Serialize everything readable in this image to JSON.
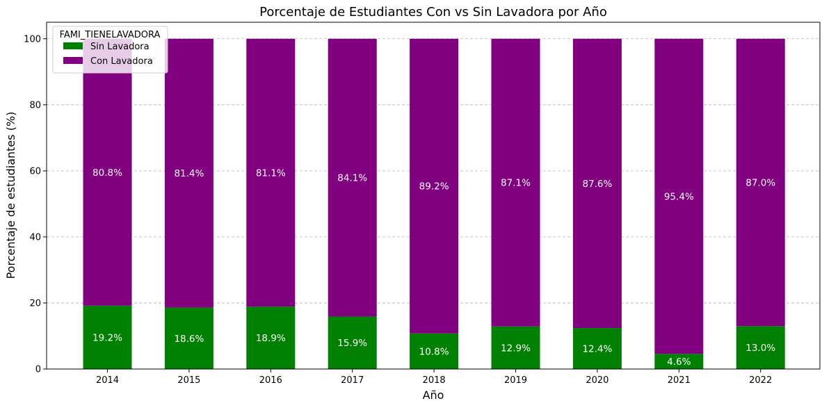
{
  "chart_data": {
    "type": "bar",
    "stacked": true,
    "title": "Porcentaje de Estudiantes Con vs Sin Lavadora por Año",
    "xlabel": "Año",
    "ylabel": "Porcentaje de estudiantes (%)",
    "categories": [
      "2014",
      "2015",
      "2016",
      "2017",
      "2018",
      "2019",
      "2020",
      "2021",
      "2022"
    ],
    "series": [
      {
        "name": "Sin Lavadora",
        "color": "#008000",
        "values": [
          19.2,
          18.6,
          18.9,
          15.9,
          10.8,
          12.9,
          12.4,
          4.6,
          13.0
        ],
        "labels": [
          "19.2%",
          "18.6%",
          "18.9%",
          "15.9%",
          "10.8%",
          "12.9%",
          "12.4%",
          "4.6%",
          "13.0%"
        ]
      },
      {
        "name": "Con Lavadora",
        "color": "#800080",
        "values": [
          80.8,
          81.4,
          81.1,
          84.1,
          89.2,
          87.1,
          87.6,
          95.4,
          87.0
        ],
        "labels": [
          "80.8%",
          "81.4%",
          "81.1%",
          "84.1%",
          "89.2%",
          "87.1%",
          "87.6%",
          "95.4%",
          "87.0%"
        ]
      }
    ],
    "ylim": [
      0,
      105
    ],
    "yticks": [
      0,
      20,
      40,
      60,
      80,
      100
    ],
    "ytick_labels": [
      "0",
      "20",
      "40",
      "60",
      "80",
      "100"
    ],
    "grid": "y-dashed",
    "legend": {
      "title": "FAMI_TIENELAVADORA",
      "position": "top-left"
    }
  }
}
